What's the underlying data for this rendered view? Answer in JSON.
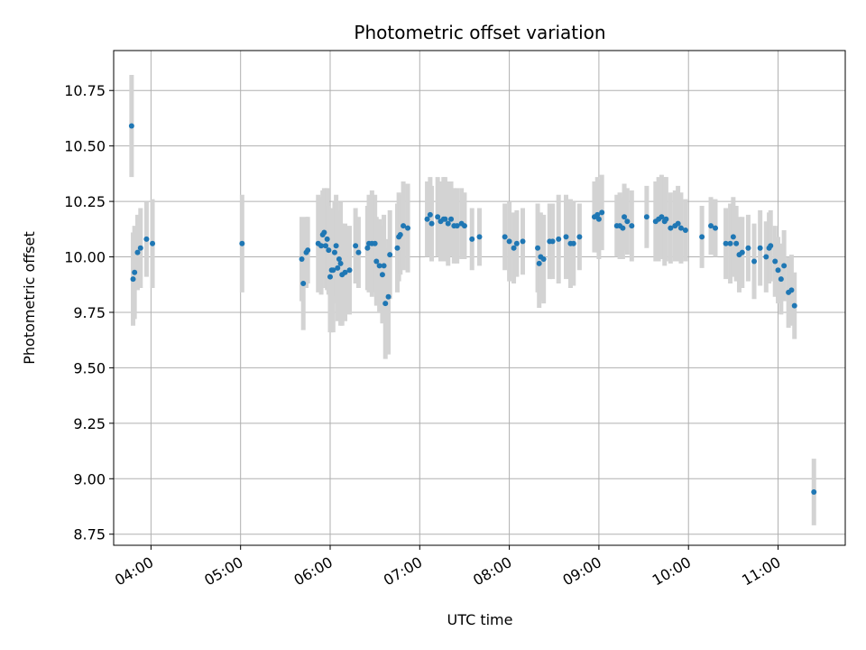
{
  "chart_data": {
    "type": "scatter",
    "title": "Photometric offset variation",
    "xlabel": "UTC time",
    "ylabel": "Photometric offset",
    "x_ticks": [
      "04:00",
      "05:00",
      "06:00",
      "07:00",
      "08:00",
      "09:00",
      "10:00",
      "11:00"
    ],
    "y_ticks": [
      "8.75",
      "9.00",
      "9.25",
      "9.50",
      "9.75",
      "10.00",
      "10.25",
      "10.50",
      "10.75"
    ],
    "xlim": [
      "03:35",
      "11:45"
    ],
    "ylim": [
      8.7,
      10.93
    ],
    "grid": true,
    "colors": {
      "point": "#1f77b4",
      "errorbar": "#d3d3d3",
      "grid": "#b0b0b0"
    },
    "series": [
      {
        "points": [
          [
            "03:47",
            10.59,
            0.23
          ],
          [
            "03:48",
            9.9,
            0.21
          ],
          [
            "03:49",
            9.93,
            0.21
          ],
          [
            "03:51",
            10.02,
            0.17
          ],
          [
            "03:53",
            10.04,
            0.18
          ],
          [
            "03:57",
            10.08,
            0.17
          ],
          [
            "04:01",
            10.06,
            0.2
          ],
          [
            "05:01",
            10.06,
            0.22
          ],
          [
            "05:41",
            9.99,
            0.19
          ],
          [
            "05:42",
            9.88,
            0.21
          ],
          [
            "05:44",
            10.02,
            0.16
          ],
          [
            "05:45",
            10.03,
            0.15
          ],
          [
            "05:52",
            10.06,
            0.22
          ],
          [
            "05:54",
            10.05,
            0.22
          ],
          [
            "05:55",
            10.1,
            0.2
          ],
          [
            "05:56",
            10.11,
            0.2
          ],
          [
            "05:57",
            10.05,
            0.19
          ],
          [
            "05:58",
            10.08,
            0.23
          ],
          [
            "05:59",
            10.03,
            0.2
          ],
          [
            "06:00",
            9.91,
            0.25
          ],
          [
            "06:01",
            9.94,
            0.28
          ],
          [
            "06:02",
            9.94,
            0.28
          ],
          [
            "06:03",
            10.02,
            0.23
          ],
          [
            "06:04",
            10.05,
            0.23
          ],
          [
            "06:05",
            9.95,
            0.24
          ],
          [
            "06:06",
            9.99,
            0.22
          ],
          [
            "06:07",
            9.97,
            0.28
          ],
          [
            "06:08",
            9.92,
            0.23
          ],
          [
            "06:10",
            9.93,
            0.22
          ],
          [
            "06:13",
            9.94,
            0.2
          ],
          [
            "06:17",
            10.05,
            0.17
          ],
          [
            "06:19",
            10.02,
            0.16
          ],
          [
            "06:25",
            10.04,
            0.19
          ],
          [
            "06:26",
            10.06,
            0.22
          ],
          [
            "06:28",
            10.06,
            0.24
          ],
          [
            "06:30",
            10.06,
            0.22
          ],
          [
            "06:31",
            9.98,
            0.2
          ],
          [
            "06:33",
            9.96,
            0.21
          ],
          [
            "06:35",
            9.92,
            0.22
          ],
          [
            "06:36",
            9.96,
            0.23
          ],
          [
            "06:37",
            9.79,
            0.25
          ],
          [
            "06:39",
            9.82,
            0.26
          ],
          [
            "06:40",
            10.01,
            0.2
          ],
          [
            "06:45",
            10.04,
            0.2
          ],
          [
            "06:46",
            10.09,
            0.2
          ],
          [
            "06:47",
            10.1,
            0.18
          ],
          [
            "06:49",
            10.14,
            0.2
          ],
          [
            "06:52",
            10.13,
            0.2
          ],
          [
            "07:05",
            10.17,
            0.17
          ],
          [
            "07:07",
            10.19,
            0.17
          ],
          [
            "07:08",
            10.15,
            0.17
          ],
          [
            "07:12",
            10.18,
            0.18
          ],
          [
            "07:14",
            10.16,
            0.18
          ],
          [
            "07:16",
            10.17,
            0.19
          ],
          [
            "07:17",
            10.17,
            0.19
          ],
          [
            "07:19",
            10.15,
            0.19
          ],
          [
            "07:21",
            10.17,
            0.17
          ],
          [
            "07:23",
            10.14,
            0.17
          ],
          [
            "07:25",
            10.14,
            0.17
          ],
          [
            "07:28",
            10.15,
            0.16
          ],
          [
            "07:30",
            10.14,
            0.15
          ],
          [
            "07:35",
            10.08,
            0.14
          ],
          [
            "07:40",
            10.09,
            0.13
          ],
          [
            "07:57",
            10.09,
            0.15
          ],
          [
            "08:00",
            10.07,
            0.18
          ],
          [
            "08:03",
            10.04,
            0.16
          ],
          [
            "08:05",
            10.06,
            0.15
          ],
          [
            "08:09",
            10.07,
            0.15
          ],
          [
            "08:19",
            10.04,
            0.2
          ],
          [
            "08:20",
            9.97,
            0.2
          ],
          [
            "08:21",
            10.0,
            0.2
          ],
          [
            "08:23",
            9.99,
            0.2
          ],
          [
            "08:27",
            10.07,
            0.17
          ],
          [
            "08:29",
            10.07,
            0.17
          ],
          [
            "08:33",
            10.08,
            0.2
          ],
          [
            "08:38",
            10.09,
            0.19
          ],
          [
            "08:41",
            10.06,
            0.2
          ],
          [
            "08:43",
            10.06,
            0.19
          ],
          [
            "08:47",
            10.09,
            0.15
          ],
          [
            "08:57",
            10.18,
            0.16
          ],
          [
            "08:59",
            10.19,
            0.17
          ],
          [
            "09:00",
            10.17,
            0.18
          ],
          [
            "09:02",
            10.2,
            0.17
          ],
          [
            "09:12",
            10.14,
            0.14
          ],
          [
            "09:14",
            10.14,
            0.15
          ],
          [
            "09:16",
            10.13,
            0.14
          ],
          [
            "09:17",
            10.18,
            0.15
          ],
          [
            "09:19",
            10.16,
            0.15
          ],
          [
            "09:22",
            10.14,
            0.16
          ],
          [
            "09:32",
            10.18,
            0.14
          ],
          [
            "09:38",
            10.16,
            0.18
          ],
          [
            "09:40",
            10.17,
            0.19
          ],
          [
            "09:42",
            10.18,
            0.19
          ],
          [
            "09:44",
            10.16,
            0.2
          ],
          [
            "09:45",
            10.17,
            0.19
          ],
          [
            "09:48",
            10.13,
            0.16
          ],
          [
            "09:51",
            10.14,
            0.16
          ],
          [
            "09:53",
            10.15,
            0.17
          ],
          [
            "09:55",
            10.13,
            0.16
          ],
          [
            "09:58",
            10.12,
            0.14
          ],
          [
            "10:09",
            10.09,
            0.14
          ],
          [
            "10:15",
            10.14,
            0.13
          ],
          [
            "10:18",
            10.13,
            0.13
          ],
          [
            "10:25",
            10.06,
            0.16
          ],
          [
            "10:28",
            10.06,
            0.18
          ],
          [
            "10:30",
            10.09,
            0.18
          ],
          [
            "10:32",
            10.06,
            0.17
          ],
          [
            "10:34",
            10.01,
            0.17
          ],
          [
            "10:36",
            10.02,
            0.16
          ],
          [
            "10:40",
            10.04,
            0.15
          ],
          [
            "10:44",
            9.98,
            0.17
          ],
          [
            "10:48",
            10.04,
            0.17
          ],
          [
            "10:52",
            10.0,
            0.16
          ],
          [
            "10:54",
            10.04,
            0.16
          ],
          [
            "10:55",
            10.05,
            0.16
          ],
          [
            "10:58",
            9.98,
            0.16
          ],
          [
            "11:00",
            9.94,
            0.15
          ],
          [
            "11:02",
            9.9,
            0.16
          ],
          [
            "11:04",
            9.96,
            0.16
          ],
          [
            "11:07",
            9.84,
            0.16
          ],
          [
            "11:09",
            9.85,
            0.16
          ],
          [
            "11:11",
            9.78,
            0.15
          ],
          [
            "11:24",
            8.94,
            0.15
          ]
        ]
      }
    ]
  }
}
